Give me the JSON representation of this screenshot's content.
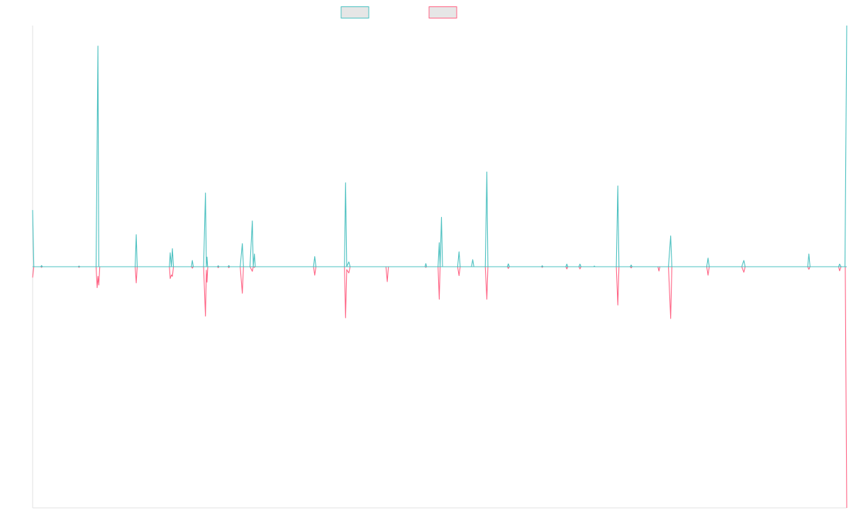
{
  "chart_data": {
    "type": "line",
    "title": "",
    "xlabel": "",
    "ylabel": "",
    "grid": false,
    "legend": "top-center",
    "x_range": [
      0,
      1000
    ],
    "ylim": [
      -100,
      100
    ],
    "colors": {
      "series_a": "#4bc0c0",
      "series_b": "#ff6384",
      "legend_fill": "#e6e6e6",
      "axis": "#e0e0e0"
    },
    "series": [
      {
        "color": "#4bc0c0",
        "points": [
          [
            0,
            23.5
          ],
          [
            1.5,
            0
          ],
          [
            10,
            0
          ],
          [
            11,
            0.5
          ],
          [
            12,
            0
          ],
          [
            56,
            0
          ],
          [
            57,
            0.3
          ],
          [
            58,
            0
          ],
          [
            78,
            0
          ],
          [
            80.2,
            91.5
          ],
          [
            81.3,
            0
          ],
          [
            126,
            0
          ],
          [
            127.3,
            13.3
          ],
          [
            128.5,
            0
          ],
          [
            168,
            0
          ],
          [
            169,
            5.8
          ],
          [
            170.5,
            0
          ],
          [
            171.7,
            7.5
          ],
          [
            173,
            0
          ],
          [
            195,
            0
          ],
          [
            196.2,
            2.6
          ],
          [
            197.4,
            0
          ],
          [
            210,
            0
          ],
          [
            212.3,
            30.6
          ],
          [
            213.4,
            0
          ],
          [
            214.2,
            4
          ],
          [
            215,
            0
          ],
          [
            227,
            0
          ],
          [
            228,
            0.4
          ],
          [
            229,
            0
          ],
          [
            240,
            0
          ],
          [
            241,
            0.5
          ],
          [
            242,
            0
          ],
          [
            255,
            0
          ],
          [
            257.6,
            9.6
          ],
          [
            259,
            0
          ],
          [
            267,
            0
          ],
          [
            269.9,
            19
          ],
          [
            271,
            0
          ],
          [
            272.4,
            5.3
          ],
          [
            273.5,
            0
          ],
          [
            345,
            0
          ],
          [
            346.5,
            4.2
          ],
          [
            348,
            0
          ],
          [
            383,
            0
          ],
          [
            384.4,
            34.8
          ],
          [
            385.8,
            0
          ],
          [
            388.4,
            2
          ],
          [
            390,
            0
          ],
          [
            482,
            0
          ],
          [
            483,
            1.3
          ],
          [
            484,
            0
          ],
          [
            498,
            0
          ],
          [
            499.5,
            10
          ],
          [
            500.5,
            0
          ],
          [
            502.2,
            20.5
          ],
          [
            503.5,
            0
          ],
          [
            522,
            0
          ],
          [
            523.8,
            6.2
          ],
          [
            525.2,
            0
          ],
          [
            539,
            0
          ],
          [
            540.6,
            2.9
          ],
          [
            542,
            0
          ],
          [
            556,
            0
          ],
          [
            557.9,
            39.3
          ],
          [
            559.2,
            0
          ],
          [
            583,
            0
          ],
          [
            584.3,
            1.2
          ],
          [
            585.6,
            0
          ],
          [
            625,
            0
          ],
          [
            626,
            0.4
          ],
          [
            627,
            0
          ],
          [
            655,
            0
          ],
          [
            656.2,
            1.1
          ],
          [
            657.4,
            0
          ],
          [
            671,
            0
          ],
          [
            672.3,
            1.1
          ],
          [
            673.6,
            0
          ],
          [
            689,
            0
          ],
          [
            690,
            0.3
          ],
          [
            691,
            0
          ],
          [
            717,
            0
          ],
          [
            718.8,
            33.5
          ],
          [
            720.2,
            0
          ],
          [
            734,
            0
          ],
          [
            735.2,
            0.7
          ],
          [
            736.4,
            0
          ],
          [
            781,
            0
          ],
          [
            783.7,
            12.8
          ],
          [
            785.2,
            0
          ],
          [
            828,
            0
          ],
          [
            829.6,
            3.6
          ],
          [
            831.2,
            0
          ],
          [
            871,
            0
          ],
          [
            873.6,
            2.6
          ],
          [
            875.2,
            0
          ],
          [
            952,
            0
          ],
          [
            953.5,
            5.3
          ],
          [
            955,
            0
          ],
          [
            990,
            0
          ],
          [
            991.2,
            1.1
          ],
          [
            993,
            0
          ],
          [
            997.8,
            0
          ],
          [
            1000,
            100
          ]
        ]
      },
      {
        "color": "#ff6384",
        "points": [
          [
            0,
            -4.5
          ],
          [
            1.5,
            0
          ],
          [
            10,
            0
          ],
          [
            11,
            -0.3
          ],
          [
            12,
            0
          ],
          [
            56,
            0
          ],
          [
            57,
            -0.3
          ],
          [
            58,
            0
          ],
          [
            78,
            0
          ],
          [
            79.3,
            -8.7
          ],
          [
            80.3,
            -4
          ],
          [
            81.3,
            -7.6
          ],
          [
            82.5,
            0
          ],
          [
            126,
            0
          ],
          [
            127.3,
            -6.7
          ],
          [
            128.5,
            0
          ],
          [
            168,
            0
          ],
          [
            169,
            -4.9
          ],
          [
            170.5,
            -3.4
          ],
          [
            171.7,
            -4
          ],
          [
            173,
            0
          ],
          [
            195,
            0
          ],
          [
            196.2,
            -0.6
          ],
          [
            197.4,
            0
          ],
          [
            210,
            0
          ],
          [
            212.3,
            -20.5
          ],
          [
            213.4,
            -1.4
          ],
          [
            214.2,
            -6.4
          ],
          [
            215.2,
            0
          ],
          [
            227,
            0
          ],
          [
            228,
            -0.4
          ],
          [
            229,
            0
          ],
          [
            240,
            0
          ],
          [
            241,
            -0.4
          ],
          [
            242,
            0
          ],
          [
            255,
            0
          ],
          [
            257.6,
            -11
          ],
          [
            259,
            0
          ],
          [
            267,
            0
          ],
          [
            269.9,
            -1.9
          ],
          [
            271,
            0
          ],
          [
            272.4,
            -0.3
          ],
          [
            273.5,
            0
          ],
          [
            345,
            0
          ],
          [
            346.5,
            -3.5
          ],
          [
            348,
            0
          ],
          [
            383,
            0
          ],
          [
            384.4,
            -21.2
          ],
          [
            385.8,
            -1.2
          ],
          [
            388.4,
            -2.6
          ],
          [
            390,
            0
          ],
          [
            434,
            0
          ],
          [
            435.6,
            -6.2
          ],
          [
            437,
            0
          ],
          [
            482,
            0
          ],
          [
            483,
            -0.3
          ],
          [
            484,
            0
          ],
          [
            498,
            0
          ],
          [
            499.5,
            -13.5
          ],
          [
            500.5,
            0
          ],
          [
            522,
            0
          ],
          [
            523.8,
            -3.7
          ],
          [
            525.2,
            0
          ],
          [
            556,
            0
          ],
          [
            557.9,
            -13.5
          ],
          [
            559.2,
            0
          ],
          [
            583,
            0
          ],
          [
            584.3,
            -0.7
          ],
          [
            585.6,
            0
          ],
          [
            625,
            0
          ],
          [
            626,
            -0.3
          ],
          [
            627,
            0
          ],
          [
            655,
            0
          ],
          [
            656.2,
            -0.9
          ],
          [
            657.4,
            0
          ],
          [
            671,
            0
          ],
          [
            672.3,
            -0.9
          ],
          [
            673.6,
            0
          ],
          [
            717,
            0
          ],
          [
            718.8,
            -15.9
          ],
          [
            720.2,
            0
          ],
          [
            734,
            0
          ],
          [
            735.2,
            -0.5
          ],
          [
            736.4,
            0
          ],
          [
            768,
            0
          ],
          [
            769.3,
            -1.8
          ],
          [
            770.5,
            0
          ],
          [
            781,
            0
          ],
          [
            783.7,
            -21.5
          ],
          [
            785.2,
            0
          ],
          [
            828,
            0
          ],
          [
            829.6,
            -3.5
          ],
          [
            831.2,
            0
          ],
          [
            871,
            0
          ],
          [
            873.6,
            -2.3
          ],
          [
            875.2,
            0
          ],
          [
            952,
            0
          ],
          [
            953.5,
            -1.1
          ],
          [
            955,
            0
          ],
          [
            990,
            0
          ],
          [
            991.2,
            -1.7
          ],
          [
            993,
            0
          ],
          [
            998.2,
            0
          ],
          [
            1000,
            -100
          ]
        ]
      }
    ]
  }
}
